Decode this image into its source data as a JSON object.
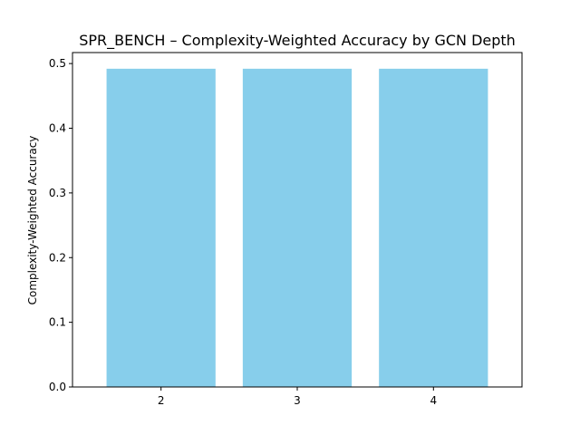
{
  "chart_data": {
    "type": "bar",
    "title": "SPR_BENCH – Complexity-Weighted Accuracy by GCN Depth",
    "xlabel": "",
    "ylabel": "Complexity-Weighted Accuracy",
    "categories": [
      "2",
      "3",
      "4"
    ],
    "values": [
      0.492,
      0.492,
      0.492
    ],
    "ylim": [
      0,
      0.517
    ],
    "yticks": [
      0.0,
      0.1,
      0.2,
      0.3,
      0.4,
      0.5
    ],
    "ytick_labels": [
      "0.0",
      "0.1",
      "0.2",
      "0.3",
      "0.4",
      "0.5"
    ],
    "bar_color": "#87ceeb",
    "grid": false,
    "legend": "none"
  }
}
